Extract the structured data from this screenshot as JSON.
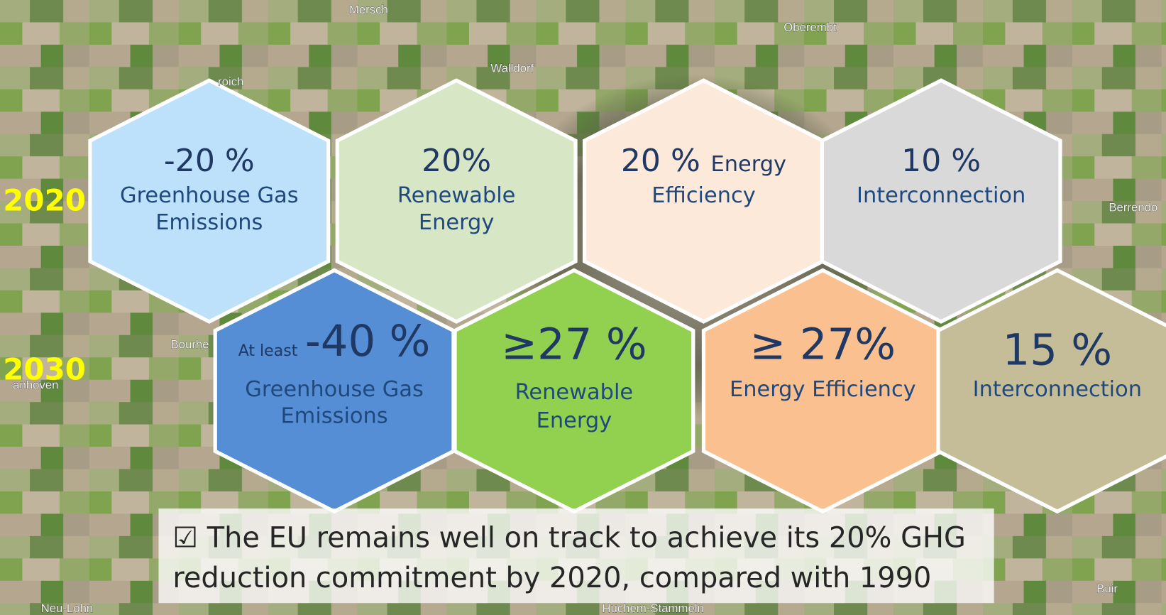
{
  "years": [
    "2020",
    "2030"
  ],
  "rows": [
    {
      "hexagons": [
        {
          "headline": "-20 %",
          "lines": [
            "Greenhouse Gas",
            "Emissions"
          ]
        },
        {
          "headline": "20%",
          "lines": [
            "Renewable",
            "Energy"
          ]
        },
        {
          "headline": "20 %",
          "headline_suffix": "Energy",
          "lines": [
            "Efficiency"
          ]
        },
        {
          "headline": "10 %",
          "lines": [
            "Interconnection"
          ]
        }
      ]
    },
    {
      "hexagons": [
        {
          "headline_prefix": "At least",
          "headline": "-40 %",
          "lines": [
            "Greenhouse Gas",
            "Emissions"
          ]
        },
        {
          "headline": "≥27 %",
          "lines": [
            "Renewable",
            "Energy"
          ]
        },
        {
          "headline": "≥ 27%",
          "lines": [
            "Energy Efficiency"
          ]
        },
        {
          "headline": "15 %",
          "lines": [
            "Interconnection"
          ]
        }
      ]
    }
  ],
  "note": {
    "lines": [
      "☑ The EU remains well on track to achieve its 20% GHG",
      "reduction commitment by 2020, compared with 1990"
    ]
  },
  "map_labels": [
    "Mersch",
    "Oberembt",
    "Walldorf",
    "roich",
    "Berrendo",
    "Bourhe",
    "anhoven",
    "Buir",
    "Neu-Lohn",
    "Huchem-Stammeln"
  ]
}
